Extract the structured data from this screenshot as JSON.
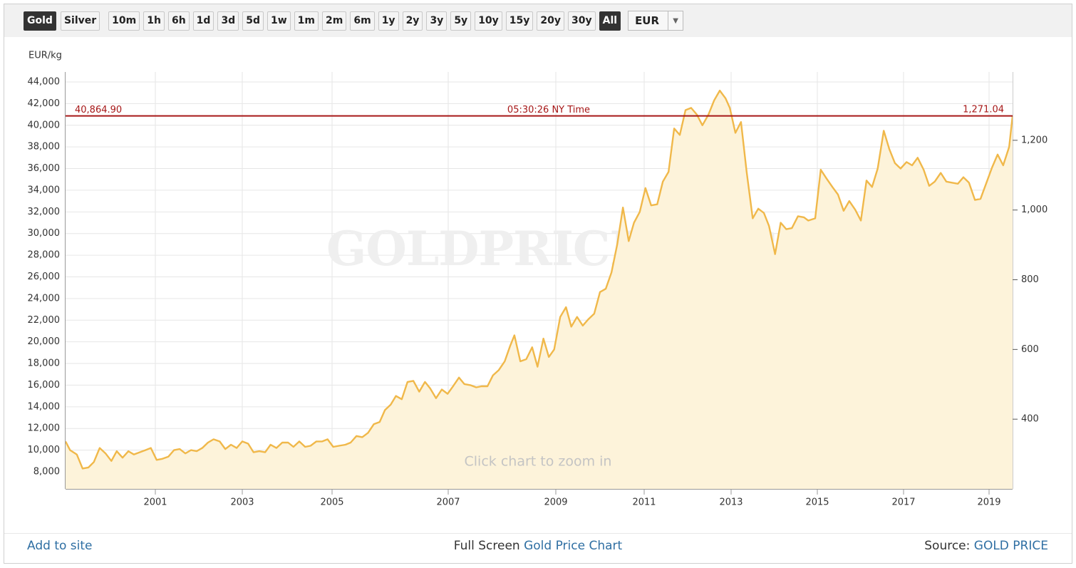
{
  "toolbar": {
    "metals": [
      {
        "label": "Gold",
        "active": true
      },
      {
        "label": "Silver"
      }
    ],
    "ranges": [
      {
        "label": "10m"
      },
      {
        "label": "1h"
      },
      {
        "label": "6h"
      },
      {
        "label": "1d"
      },
      {
        "label": "3d"
      },
      {
        "label": "5d"
      },
      {
        "label": "1w"
      },
      {
        "label": "1m"
      },
      {
        "label": "2m"
      },
      {
        "label": "6m"
      },
      {
        "label": "1y"
      },
      {
        "label": "2y"
      },
      {
        "label": "3y"
      },
      {
        "label": "5y"
      },
      {
        "label": "10y"
      },
      {
        "label": "15y"
      },
      {
        "label": "20y"
      },
      {
        "label": "30y"
      },
      {
        "label": "All",
        "active": true
      }
    ],
    "currency": "EUR"
  },
  "chart_data": {
    "type": "area",
    "y_label": "EUR/kg",
    "watermark": "GOLDPRICE.ORG",
    "hint": "Click chart to zoom in",
    "color": "#f0b84a",
    "fill": "#fdf3da",
    "grid": true,
    "x": [
      1999.0,
      1999.1,
      1999.25,
      1999.38,
      1999.51,
      1999.63,
      1999.76,
      1999.89,
      2000.02,
      2000.14,
      2000.27,
      2000.4,
      2000.52,
      2000.65,
      2000.78,
      2000.9,
      2001.03,
      2001.16,
      2001.3,
      2001.43,
      2001.56,
      2001.69,
      2001.82,
      2001.95,
      2002.08,
      2002.21,
      2002.34,
      2002.48,
      2002.61,
      2002.74,
      2002.87,
      2003.0,
      2003.13,
      2003.25,
      2003.38,
      2003.51,
      2003.63,
      2003.76,
      2003.89,
      2004.02,
      2004.14,
      2004.27,
      2004.4,
      2004.52,
      2004.65,
      2004.78,
      2004.9,
      2005.02,
      2005.12,
      2005.23,
      2005.32,
      2005.42,
      2005.52,
      2005.62,
      2005.72,
      2005.82,
      2005.91,
      2006.01,
      2006.1,
      2006.2,
      2006.3,
      2006.4,
      2006.5,
      2006.6,
      2006.69,
      2006.79,
      2006.89,
      2006.99,
      2007.09,
      2007.2,
      2007.3,
      2007.41,
      2007.52,
      2007.62,
      2007.73,
      2007.83,
      2007.94,
      2008.05,
      2008.15,
      2008.23,
      2008.34,
      2008.45,
      2008.56,
      2008.66,
      2008.77,
      2008.87,
      2008.97,
      2009.1,
      2009.23,
      2009.35,
      2009.48,
      2009.61,
      2009.74,
      2009.87,
      2010.0,
      2010.13,
      2010.26,
      2010.39,
      2010.52,
      2010.65,
      2010.77,
      2010.9,
      2011.03,
      2011.16,
      2011.3,
      2011.43,
      2011.56,
      2011.69,
      2011.82,
      2011.95,
      2012.08,
      2012.21,
      2012.34,
      2012.48,
      2012.61,
      2012.74,
      2012.87,
      2012.97,
      2013.1,
      2013.23,
      2013.36,
      2013.5,
      2013.63,
      2013.76,
      2013.88,
      2014.02,
      2014.15,
      2014.28,
      2014.41,
      2014.55,
      2014.69,
      2014.79,
      2014.95,
      2015.08,
      2015.21,
      2015.35,
      2015.48,
      2015.61,
      2015.74,
      2015.88,
      2016.01,
      2016.14,
      2016.27,
      2016.4,
      2016.54,
      2016.67,
      2016.8,
      2016.93,
      2017.07,
      2017.2,
      2017.33,
      2017.47,
      2017.6,
      2017.73,
      2017.87,
      2018.0,
      2018.13,
      2018.27,
      2018.4,
      2018.53,
      2018.67,
      2018.8,
      2018.93,
      2019.07,
      2019.2,
      2019.33,
      2019.47,
      2019.55
    ],
    "values": [
      10800,
      10000,
      9600,
      8300,
      8400,
      8900,
      10200,
      9700,
      9000,
      9900,
      9300,
      9900,
      9600,
      9800,
      10000,
      10200,
      9100,
      9200,
      9400,
      10000,
      10100,
      9700,
      10000,
      9900,
      10200,
      10700,
      11000,
      10800,
      10100,
      10500,
      10200,
      10800,
      10600,
      9800,
      9900,
      9800,
      10500,
      10200,
      10700,
      10700,
      10300,
      10800,
      10300,
      10400,
      10800,
      10800,
      11000,
      10300,
      10400,
      10500,
      10700,
      11300,
      11200,
      11600,
      12400,
      12600,
      13700,
      14200,
      15000,
      14700,
      16300,
      16400,
      15400,
      16300,
      15700,
      14800,
      15600,
      15200,
      15900,
      16700,
      16100,
      16000,
      15800,
      15900,
      15900,
      16900,
      17400,
      18200,
      19600,
      20600,
      18200,
      18400,
      19500,
      17700,
      20300,
      18600,
      19300,
      22300,
      23200,
      21400,
      22300,
      21500,
      22100,
      22600,
      24600,
      24900,
      26400,
      29000,
      32400,
      29300,
      31000,
      32000,
      34200,
      32600,
      32700,
      34800,
      35700,
      39700,
      39100,
      41400,
      41600,
      41000,
      40000,
      41000,
      42300,
      43200,
      42500,
      41600,
      39300,
      40300,
      35700,
      31400,
      32300,
      31900,
      30700,
      28100,
      31000,
      30400,
      30500,
      31600,
      31500,
      31200,
      31400,
      35900,
      35100,
      34300,
      33600,
      32100,
      33000,
      32200,
      31200,
      34900,
      34300,
      36000,
      39500,
      37800,
      36500,
      36000,
      36600,
      36300,
      37000,
      35900,
      34400,
      34800,
      35600,
      34800,
      34700,
      34600,
      35200,
      34700,
      33100,
      33200,
      34600,
      36100,
      37300,
      36300,
      38000,
      40864.9
    ],
    "xlim": [
      1999,
      2019.55
    ],
    "xticks": [
      2001,
      2003,
      2005,
      2007,
      2009,
      2011,
      2013,
      2015,
      2017,
      2019
    ],
    "ylim": [
      6420,
      44920
    ],
    "yticks": [
      {
        "value": 8000,
        "label": "8,000"
      },
      {
        "value": 10000,
        "label": "10,000"
      },
      {
        "value": 12000,
        "label": "12,000"
      },
      {
        "value": 14000,
        "label": "14,000"
      },
      {
        "value": 16000,
        "label": "16,000"
      },
      {
        "value": 18000,
        "label": "18,000"
      },
      {
        "value": 20000,
        "label": "20,000"
      },
      {
        "value": 22000,
        "label": "22,000"
      },
      {
        "value": 24000,
        "label": "24,000"
      },
      {
        "value": 26000,
        "label": "26,000"
      },
      {
        "value": 28000,
        "label": "28,000"
      },
      {
        "value": 30000,
        "label": "30,000"
      },
      {
        "value": 32000,
        "label": "32,000"
      },
      {
        "value": 34000,
        "label": "34,000"
      },
      {
        "value": 36000,
        "label": "36,000"
      },
      {
        "value": 38000,
        "label": "38,000"
      },
      {
        "value": 40000,
        "label": "40,000"
      },
      {
        "value": 42000,
        "label": "42,000"
      },
      {
        "value": 44000,
        "label": "44,000"
      }
    ],
    "y2lim": [
      200,
      1396
    ],
    "y2ticks": [
      400,
      600,
      800,
      {
        "value": 1000,
        "label": "1,000"
      },
      {
        "value": 1200,
        "label": "1,200"
      }
    ],
    "price_line": {
      "value": 40864.9,
      "label": "40,864.90",
      "time": "05:30:26 NY Time",
      "y2_value": 1271.04,
      "y2_label": "1,271.04",
      "color": "#a61717"
    }
  },
  "footer": {
    "add": "Add to site",
    "full_screen": "Full Screen",
    "chart_link": "Gold Price Chart",
    "source": "Source:",
    "source_link": "GOLD PRICE"
  }
}
